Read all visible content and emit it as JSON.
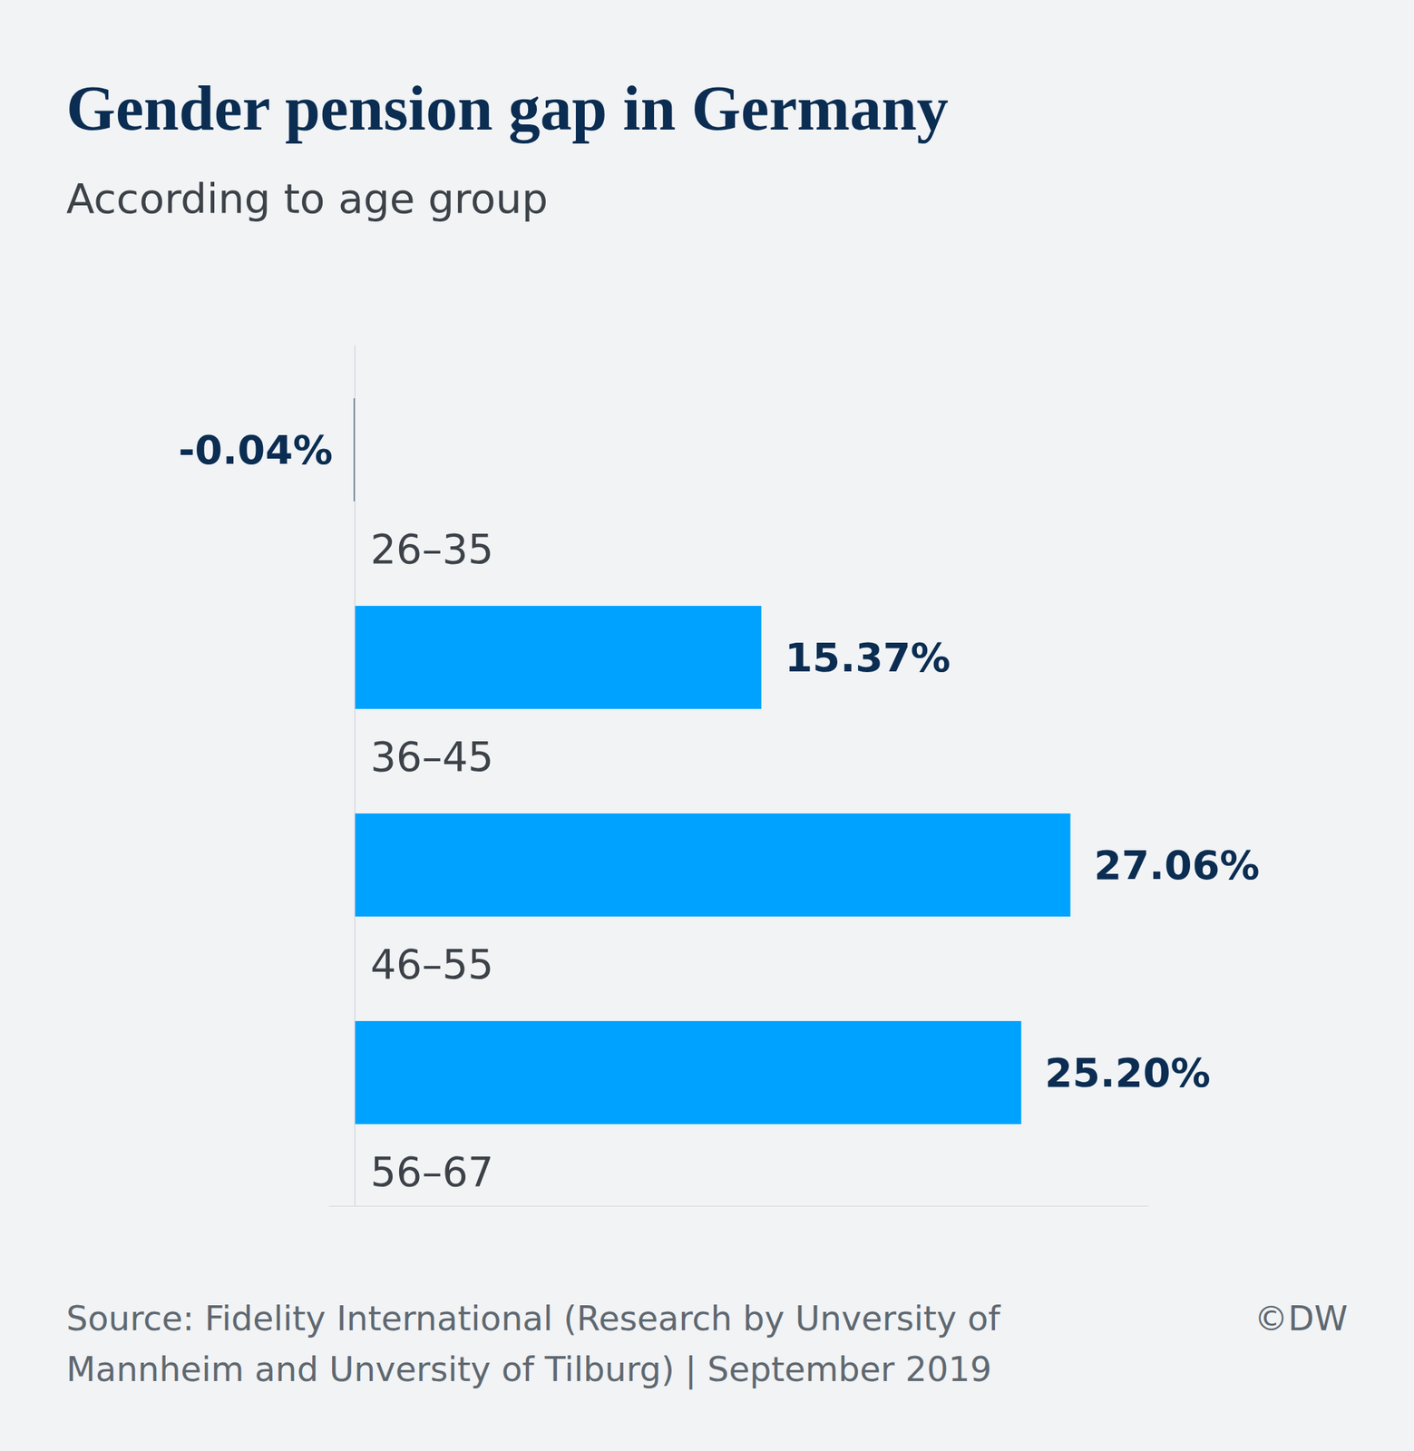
{
  "chart_data": {
    "type": "bar",
    "orientation": "horizontal",
    "title": "Gender pension gap in Germany",
    "subtitle": "According to age group",
    "categories": [
      "26–35",
      "36–45",
      "46–55",
      "56–67"
    ],
    "values": [
      -0.04,
      15.37,
      27.06,
      25.2
    ],
    "value_labels": [
      "-0.04%",
      "15.37%",
      "27.06%",
      "25.20%"
    ],
    "colors": [
      "#0b2d52",
      "#00a2ff",
      "#00a2ff",
      "#00a2ff"
    ],
    "xlim": [
      -1,
      30
    ],
    "xticks": [],
    "tick_labels": false,
    "data_labels": true,
    "grid": false,
    "source": [
      "Source: Fidelity International (Research by Unversity of",
      "Mannheim and Unversity of Tilburg) | September 2019"
    ],
    "credit": "©DW"
  }
}
